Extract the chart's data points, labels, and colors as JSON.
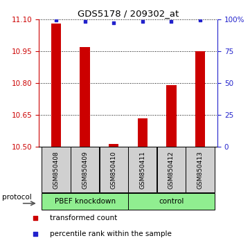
{
  "title": "GDS5178 / 209302_at",
  "samples": [
    "GSM850408",
    "GSM850409",
    "GSM850410",
    "GSM850411",
    "GSM850412",
    "GSM850413"
  ],
  "red_values": [
    11.08,
    10.97,
    10.515,
    10.635,
    10.79,
    10.95
  ],
  "blue_values": [
    99.5,
    98.5,
    97.5,
    98.5,
    98.5,
    99.5
  ],
  "ylim_left": [
    10.5,
    11.1
  ],
  "ylim_right": [
    0,
    100
  ],
  "yticks_left": [
    10.5,
    10.65,
    10.8,
    10.95,
    11.1
  ],
  "yticks_right": [
    0,
    25,
    50,
    75,
    100
  ],
  "groups": [
    {
      "label": "PBEF knockdown",
      "indices": [
        0,
        1,
        2
      ]
    },
    {
      "label": "control",
      "indices": [
        3,
        4,
        5
      ]
    }
  ],
  "protocol_label": "protocol",
  "red_color": "#cc0000",
  "blue_color": "#2222cc",
  "bar_width": 0.35,
  "base_value": 10.5,
  "sample_box_color": "#d0d0d0",
  "group_color": "#90ee90"
}
